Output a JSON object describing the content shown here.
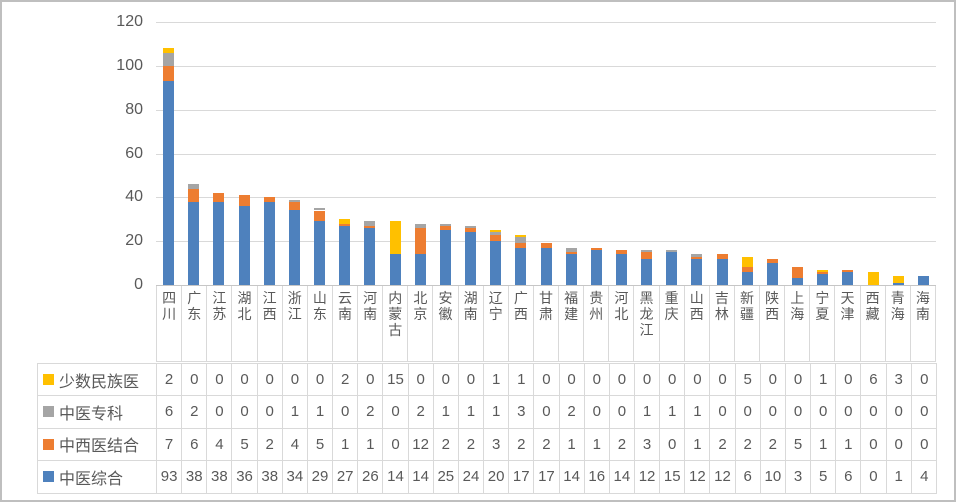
{
  "chart_data": {
    "type": "bar",
    "stacked": true,
    "title": "",
    "xlabel": "",
    "ylabel": "",
    "ylim": [
      0,
      120
    ],
    "yticks": [
      0,
      20,
      40,
      60,
      80,
      100,
      120
    ],
    "grid": true,
    "legend_position": "data-table-left",
    "categories": [
      "四川",
      "广东",
      "江苏",
      "湖北",
      "江西",
      "浙江",
      "山东",
      "云南",
      "河南",
      "内蒙古",
      "北京",
      "安徽",
      "湖南",
      "辽宁",
      "广西",
      "甘肃",
      "福建",
      "贵州",
      "河北",
      "黑龙江",
      "重庆",
      "山西",
      "吉林",
      "新疆",
      "陕西",
      "上海",
      "宁夏",
      "天津",
      "西藏",
      "青海",
      "海南"
    ],
    "series": [
      {
        "name": "少数民族医",
        "color": "#FFC000",
        "values": [
          2,
          0,
          0,
          0,
          0,
          0,
          0,
          2,
          0,
          15,
          0,
          0,
          0,
          1,
          1,
          0,
          0,
          0,
          0,
          0,
          0,
          0,
          0,
          5,
          0,
          0,
          1,
          0,
          6,
          3,
          0
        ]
      },
      {
        "name": "中医专科",
        "color": "#A5A5A5",
        "values": [
          6,
          2,
          0,
          0,
          0,
          1,
          1,
          0,
          2,
          0,
          2,
          1,
          1,
          1,
          3,
          0,
          2,
          0,
          0,
          1,
          1,
          1,
          0,
          0,
          0,
          0,
          0,
          0,
          0,
          0,
          0
        ]
      },
      {
        "name": "中西医结合",
        "color": "#ED7D31",
        "values": [
          7,
          6,
          4,
          5,
          2,
          4,
          5,
          1,
          1,
          0,
          12,
          2,
          2,
          3,
          2,
          2,
          1,
          1,
          2,
          3,
          0,
          1,
          2,
          2,
          2,
          5,
          1,
          1,
          0,
          0,
          0
        ]
      },
      {
        "name": "中医综合",
        "color": "#4E81BD",
        "values": [
          93,
          38,
          38,
          36,
          38,
          34,
          29,
          27,
          26,
          14,
          14,
          25,
          24,
          20,
          17,
          17,
          14,
          16,
          14,
          12,
          15,
          12,
          12,
          6,
          10,
          3,
          5,
          6,
          0,
          1,
          4
        ]
      }
    ],
    "stack_order_bottom_to_top": [
      "中医综合",
      "中西医结合",
      "中医专科",
      "少数民族医"
    ]
  },
  "colors": {
    "background": "#FFFFFF",
    "frame_border": "#BFBFBF",
    "gridline": "#D9D9D9",
    "axis_line": "#C6C6C6",
    "table_border": "#D9D9D9",
    "text": "#595959"
  }
}
